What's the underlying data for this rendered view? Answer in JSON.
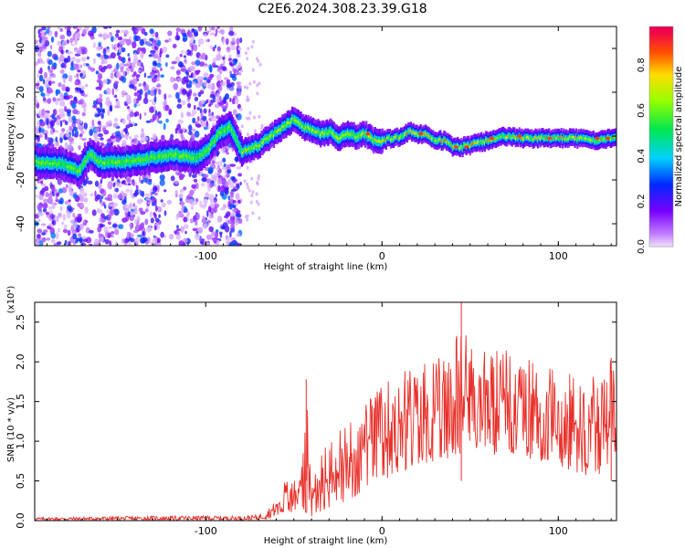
{
  "figure": {
    "title": "C2E6.2024.308.23.39.G18"
  },
  "chart_data": [
    {
      "type": "heatmap",
      "xlabel": "Height of straight line (km)",
      "ylabel": "Frequency (Hz)",
      "xlim": [
        -197,
        133
      ],
      "ylim": [
        -50,
        50
      ],
      "xticks": [
        -100,
        0,
        100
      ],
      "yticks": [
        -40,
        -20,
        0,
        20,
        40
      ],
      "grid": false,
      "colorbar": {
        "label": "Normalized spectral amplitude",
        "range": [
          0.0,
          0.97
        ],
        "ticks": [
          0.0,
          0.2,
          0.4,
          0.6,
          0.8
        ]
      },
      "ridge": {
        "x": [
          -190,
          -180,
          -172,
          -166,
          -160,
          -150,
          -140,
          -130,
          -120,
          -112,
          -105,
          -98,
          -92,
          -86,
          -80,
          -75,
          -70,
          -65,
          -60,
          -55,
          -50,
          -45,
          -40,
          -35,
          -30,
          -25,
          -20,
          -15,
          -10,
          -5,
          0,
          5,
          10,
          15,
          20,
          25,
          30,
          35,
          40,
          45,
          50,
          55,
          60,
          65,
          70,
          80,
          90,
          100,
          110,
          120,
          130
        ],
        "y": [
          -12,
          -13,
          -16,
          -8,
          -12,
          -12,
          -11,
          -10,
          -8,
          -9,
          -10,
          -5,
          2,
          4,
          -7,
          -6,
          -4,
          -1,
          2,
          5,
          8,
          4,
          3,
          1,
          2,
          -1,
          1,
          0,
          1,
          -2,
          -2,
          -1,
          0,
          2,
          1,
          1,
          -2,
          -2,
          -5,
          -5,
          -4,
          -3,
          -2,
          -1,
          0,
          -1,
          -1,
          -1,
          -1,
          -2,
          -1
        ]
      }
    },
    {
      "type": "line",
      "xlabel": "Height of straight line (km)",
      "ylabel": "SNR (10 * v/v)",
      "y_multiplier": "(x10⁴)",
      "xlim": [
        -197,
        133
      ],
      "ylim": [
        0,
        2.75
      ],
      "xticks": [
        -100,
        0,
        100
      ],
      "yticks": [
        0.0,
        0.5,
        1.0,
        1.5,
        2.0,
        2.5
      ],
      "grid": false,
      "series": [
        {
          "color": "#e8302a",
          "envelope": {
            "x": [
              -197,
              -120,
              -80,
              -70,
              -65,
              -60,
              -55,
              -50,
              -45,
              -43,
              -40,
              -35,
              -30,
              -25,
              -20,
              -15,
              -10,
              -5,
              0,
              10,
              20,
              30,
              40,
              45,
              50,
              60,
              70,
              80,
              90,
              100,
              110,
              120,
              125,
              130,
              133
            ],
            "max": [
              0.04,
              0.06,
              0.06,
              0.08,
              0.15,
              0.25,
              0.5,
              0.6,
              0.9,
              1.78,
              0.4,
              0.9,
              1.05,
              1.1,
              1.3,
              1.35,
              1.45,
              1.6,
              1.7,
              1.9,
              1.95,
              2.05,
              2.1,
              2.75,
              2.2,
              2.2,
              2.15,
              2.05,
              2.0,
              1.9,
              1.85,
              1.85,
              1.8,
              2.05,
              1.75
            ],
            "min": [
              0.0,
              0.0,
              0.0,
              0.0,
              0.02,
              0.05,
              0.1,
              0.1,
              0.1,
              0.1,
              0.05,
              0.1,
              0.15,
              0.2,
              0.25,
              0.3,
              0.4,
              0.45,
              0.5,
              0.6,
              0.7,
              0.75,
              0.8,
              0.85,
              0.9,
              0.8,
              0.85,
              0.8,
              0.75,
              0.7,
              0.6,
              0.55,
              0.6,
              0.75,
              0.7
            ]
          }
        }
      ]
    }
  ]
}
